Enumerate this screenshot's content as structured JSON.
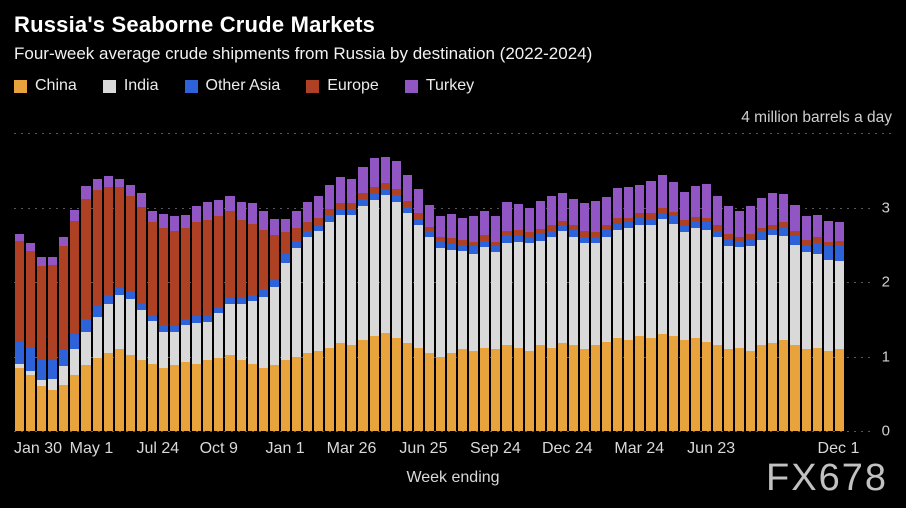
{
  "header": {
    "title": "Russia's Seaborne Crude Markets",
    "subtitle": "Four-week average crude shipments from Russia by destination (2022-2024)"
  },
  "watermark": "FX678",
  "colors": {
    "background": "#000000",
    "grid": "#585858",
    "title_text": "#ffffff",
    "axis_text": "#d9d9d9",
    "china": "#E8A33D",
    "india": "#D9D9D9",
    "other_asia": "#2E62D9",
    "europe": "#AE4123",
    "turkey": "#9155C4"
  },
  "chart_data": {
    "type": "bar",
    "stacked": true,
    "title": "Russia's Seaborne Crude Markets",
    "subtitle": "Four-week average crude shipments from Russia by destination (2022-2024)",
    "unit_note": "4 million barrels a day",
    "xlabel": "Week ending",
    "ylabel": "million barrels a day",
    "ylim": [
      0,
      4
    ],
    "yticks": [
      0,
      1,
      2,
      3
    ],
    "legend_position": "top",
    "grid": "dotted horizontal",
    "n_points": 75,
    "x_start": "2022-01-30",
    "x_end": "2024-12-01",
    "x_step_weeks": 2,
    "xticks": [
      {
        "label": "Jan 30",
        "index": 0
      },
      {
        "label": "May 1",
        "index": 6.5
      },
      {
        "label": "Jul 24",
        "index": 12.5
      },
      {
        "label": "Oct 9",
        "index": 18
      },
      {
        "label": "Jan 1",
        "index": 24
      },
      {
        "label": "Mar 26",
        "index": 30
      },
      {
        "label": "Jun 25",
        "index": 36.5
      },
      {
        "label": "Sep 24",
        "index": 43
      },
      {
        "label": "Dec 24",
        "index": 49.5
      },
      {
        "label": "Mar 24",
        "index": 56
      },
      {
        "label": "Jun 23",
        "index": 62.5
      },
      {
        "label": "Dec 1",
        "index": 74
      }
    ],
    "series": [
      {
        "name": "China",
        "color": "#E8A33D",
        "values": [
          0.85,
          0.75,
          0.6,
          0.55,
          0.62,
          0.75,
          0.88,
          0.98,
          1.05,
          1.1,
          1.02,
          0.95,
          0.9,
          0.85,
          0.88,
          0.92,
          0.9,
          0.95,
          0.98,
          1.02,
          0.95,
          0.9,
          0.85,
          0.88,
          0.95,
          1.0,
          1.05,
          1.08,
          1.12,
          1.18,
          1.15,
          1.22,
          1.28,
          1.32,
          1.25,
          1.18,
          1.12,
          1.05,
          1.0,
          1.05,
          1.1,
          1.08,
          1.12,
          1.1,
          1.15,
          1.12,
          1.08,
          1.15,
          1.12,
          1.18,
          1.15,
          1.1,
          1.15,
          1.2,
          1.25,
          1.22,
          1.28,
          1.25,
          1.3,
          1.28,
          1.22,
          1.25,
          1.2,
          1.15,
          1.1,
          1.12,
          1.08,
          1.15,
          1.18,
          1.22,
          1.15,
          1.1,
          1.12,
          1.08,
          1.1
        ]
      },
      {
        "name": "India",
        "color": "#D9D9D9",
        "values": [
          0.05,
          0.05,
          0.08,
          0.15,
          0.25,
          0.35,
          0.45,
          0.55,
          0.65,
          0.72,
          0.75,
          0.68,
          0.58,
          0.48,
          0.45,
          0.5,
          0.55,
          0.52,
          0.6,
          0.68,
          0.75,
          0.85,
          0.95,
          1.05,
          1.3,
          1.45,
          1.55,
          1.6,
          1.68,
          1.72,
          1.75,
          1.8,
          1.82,
          1.85,
          1.82,
          1.75,
          1.65,
          1.55,
          1.45,
          1.38,
          1.32,
          1.3,
          1.35,
          1.3,
          1.38,
          1.42,
          1.45,
          1.4,
          1.48,
          1.5,
          1.45,
          1.42,
          1.38,
          1.4,
          1.45,
          1.5,
          1.48,
          1.52,
          1.55,
          1.5,
          1.45,
          1.48,
          1.5,
          1.45,
          1.38,
          1.35,
          1.4,
          1.42,
          1.45,
          1.4,
          1.35,
          1.3,
          1.25,
          1.22,
          1.18
        ]
      },
      {
        "name": "Other Asia",
        "color": "#2E62D9",
        "values": [
          0.3,
          0.32,
          0.28,
          0.25,
          0.22,
          0.2,
          0.18,
          0.15,
          0.12,
          0.1,
          0.1,
          0.08,
          0.08,
          0.1,
          0.08,
          0.08,
          0.1,
          0.08,
          0.08,
          0.1,
          0.08,
          0.08,
          0.1,
          0.1,
          0.12,
          0.1,
          0.08,
          0.08,
          0.1,
          0.08,
          0.08,
          0.1,
          0.08,
          0.08,
          0.1,
          0.08,
          0.08,
          0.08,
          0.1,
          0.08,
          0.08,
          0.1,
          0.08,
          0.08,
          0.1,
          0.08,
          0.08,
          0.1,
          0.08,
          0.08,
          0.1,
          0.08,
          0.08,
          0.1,
          0.08,
          0.08,
          0.1,
          0.08,
          0.08,
          0.1,
          0.08,
          0.08,
          0.1,
          0.08,
          0.1,
          0.08,
          0.08,
          0.1,
          0.08,
          0.1,
          0.12,
          0.1,
          0.15,
          0.18,
          0.22
        ]
      },
      {
        "name": "Europe",
        "color": "#AE4123",
        "values": [
          1.35,
          1.3,
          1.25,
          1.28,
          1.4,
          1.52,
          1.6,
          1.55,
          1.45,
          1.35,
          1.28,
          1.3,
          1.25,
          1.3,
          1.28,
          1.22,
          1.25,
          1.28,
          1.22,
          1.15,
          1.05,
          0.95,
          0.8,
          0.6,
          0.3,
          0.18,
          0.12,
          0.1,
          0.08,
          0.08,
          0.08,
          0.08,
          0.1,
          0.08,
          0.08,
          0.08,
          0.08,
          0.06,
          0.06,
          0.08,
          0.06,
          0.06,
          0.08,
          0.06,
          0.06,
          0.08,
          0.06,
          0.06,
          0.08,
          0.06,
          0.06,
          0.08,
          0.06,
          0.06,
          0.08,
          0.06,
          0.06,
          0.08,
          0.06,
          0.06,
          0.08,
          0.06,
          0.06,
          0.08,
          0.06,
          0.06,
          0.08,
          0.06,
          0.06,
          0.08,
          0.06,
          0.06,
          0.08,
          0.06,
          0.05
        ]
      },
      {
        "name": "Turkey",
        "color": "#9155C4",
        "values": [
          0.1,
          0.1,
          0.12,
          0.1,
          0.12,
          0.15,
          0.18,
          0.15,
          0.15,
          0.12,
          0.15,
          0.18,
          0.15,
          0.18,
          0.2,
          0.18,
          0.22,
          0.25,
          0.22,
          0.2,
          0.25,
          0.28,
          0.25,
          0.22,
          0.18,
          0.22,
          0.28,
          0.3,
          0.32,
          0.35,
          0.32,
          0.35,
          0.38,
          0.35,
          0.38,
          0.35,
          0.32,
          0.3,
          0.28,
          0.32,
          0.3,
          0.35,
          0.32,
          0.35,
          0.38,
          0.35,
          0.32,
          0.38,
          0.4,
          0.38,
          0.35,
          0.38,
          0.42,
          0.38,
          0.4,
          0.42,
          0.38,
          0.42,
          0.45,
          0.4,
          0.38,
          0.42,
          0.45,
          0.4,
          0.38,
          0.35,
          0.38,
          0.4,
          0.42,
          0.38,
          0.35,
          0.32,
          0.3,
          0.28,
          0.25
        ]
      }
    ]
  }
}
